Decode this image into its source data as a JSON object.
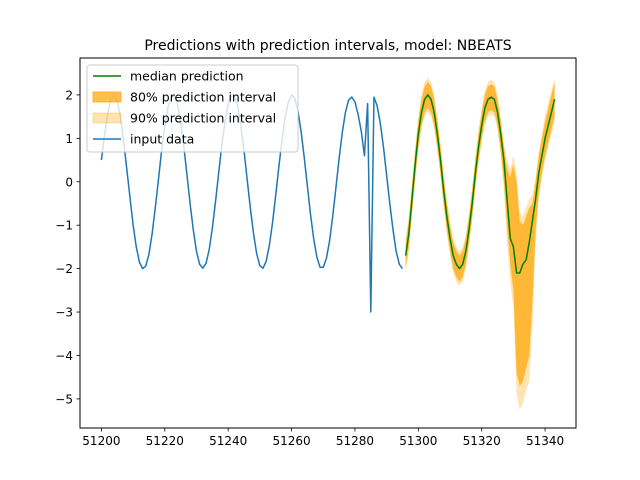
{
  "chart_data": {
    "type": "line",
    "title": "Predictions with prediction intervals, model: NBEATS",
    "xlabel": "",
    "ylabel": "",
    "xlim": [
      51193.25,
      51349.75
    ],
    "ylim": [
      -5.67,
      2.85
    ],
    "x_ticks": [
      51200,
      51220,
      51240,
      51260,
      51280,
      51300,
      51320,
      51340
    ],
    "y_ticks": [
      2,
      1,
      0,
      -1,
      -2,
      -3,
      -4,
      -5
    ],
    "x_tick_labels": [
      "51200",
      "51220",
      "51240",
      "51260",
      "51280",
      "51300",
      "51320",
      "51340"
    ],
    "y_tick_labels": [
      "2",
      "1",
      "0",
      "−1",
      "−2",
      "−3",
      "−4",
      "−5"
    ],
    "grid": false,
    "legend_position": "top-left",
    "legend": [
      {
        "label": "median prediction",
        "kind": "line",
        "color": "#008000"
      },
      {
        "label": "80% prediction interval",
        "kind": "patch",
        "color": "#FFA500",
        "opacity": 0.7
      },
      {
        "label": "90% prediction interval",
        "kind": "patch",
        "color": "#FFA500",
        "opacity": 0.3
      },
      {
        "label": "input data",
        "kind": "line",
        "color": "#1f77b4"
      }
    ],
    "series": [
      {
        "name": "input data",
        "color": "#1f77b4",
        "x": [
          51200,
          51201,
          51202,
          51203,
          51204,
          51205,
          51206,
          51207,
          51208,
          51209,
          51210,
          51211,
          51212,
          51213,
          51214,
          51215,
          51216,
          51217,
          51218,
          51219,
          51220,
          51221,
          51222,
          51223,
          51224,
          51225,
          51226,
          51227,
          51228,
          51229,
          51230,
          51231,
          51232,
          51233,
          51234,
          51235,
          51236,
          51237,
          51238,
          51239,
          51240,
          51241,
          51242,
          51243,
          51244,
          51245,
          51246,
          51247,
          51248,
          51249,
          51250,
          51251,
          51252,
          51253,
          51254,
          51255,
          51256,
          51257,
          51258,
          51259,
          51260,
          51261,
          51262,
          51263,
          51264,
          51265,
          51266,
          51267,
          51268,
          51269,
          51270,
          51271,
          51272,
          51273,
          51274,
          51275,
          51276,
          51277,
          51278,
          51279,
          51280,
          51281,
          51282,
          51283,
          51284,
          51285,
          51286,
          51287,
          51288,
          51289,
          51290,
          51291,
          51292,
          51293,
          51294,
          51295
        ],
        "y": [
          0.5,
          1.08,
          1.58,
          1.9,
          2.0,
          1.86,
          1.48,
          0.95,
          0.3,
          -0.35,
          -0.99,
          -1.5,
          -1.85,
          -2.0,
          -1.94,
          -1.67,
          -1.2,
          -0.6,
          0.05,
          0.72,
          1.28,
          1.71,
          1.95,
          1.97,
          1.78,
          1.38,
          0.81,
          0.16,
          -0.51,
          -1.11,
          -1.6,
          -1.9,
          -1.99,
          -1.88,
          -1.57,
          -1.07,
          -0.46,
          0.2,
          0.85,
          1.38,
          1.78,
          1.98,
          1.97,
          1.75,
          1.3,
          0.72,
          0.05,
          -0.61,
          -1.19,
          -1.66,
          -1.93,
          -1.99,
          -1.83,
          -1.46,
          -0.94,
          -0.31,
          0.35,
          0.97,
          1.49,
          1.84,
          2.0,
          1.93,
          1.64,
          1.16,
          0.56,
          -0.1,
          -0.76,
          -1.32,
          -1.74,
          -1.97,
          -1.97,
          -1.76,
          -1.36,
          -0.79,
          -0.14,
          0.53,
          1.13,
          1.6,
          1.88,
          1.95,
          1.84,
          1.55,
          1.16,
          0.6,
          1.8,
          -3.0,
          1.95,
          1.75,
          1.35,
          0.8,
          0.15,
          -0.5,
          -1.1,
          -1.6,
          -1.9,
          -2.0
        ]
      },
      {
        "name": "median prediction",
        "color": "#008000",
        "x": [
          51296,
          51297,
          51298,
          51299,
          51300,
          51301,
          51302,
          51303,
          51304,
          51305,
          51306,
          51307,
          51308,
          51309,
          51310,
          51311,
          51312,
          51313,
          51314,
          51315,
          51316,
          51317,
          51318,
          51319,
          51320,
          51321,
          51322,
          51323,
          51324,
          51325,
          51326,
          51327,
          51328,
          51329,
          51330,
          51331,
          51332,
          51333,
          51334,
          51335,
          51336,
          51337,
          51338,
          51339,
          51340,
          51341,
          51342,
          51343
        ],
        "y": [
          -1.7,
          -1.2,
          -0.4,
          0.4,
          1.1,
          1.6,
          1.9,
          2.0,
          1.9,
          1.6,
          1.1,
          0.5,
          -0.2,
          -0.8,
          -1.3,
          -1.7,
          -1.9,
          -2.0,
          -1.9,
          -1.6,
          -1.1,
          -0.5,
          0.2,
          0.8,
          1.3,
          1.7,
          1.9,
          1.95,
          1.9,
          1.6,
          1.1,
          0.5,
          -0.4,
          -1.3,
          -1.5,
          -2.1,
          -2.1,
          -1.9,
          -1.8,
          -1.4,
          -0.9,
          -0.4,
          0.2,
          0.6,
          1.0,
          1.3,
          1.6,
          1.9
        ]
      }
    ],
    "intervals": [
      {
        "name": "90% prediction interval",
        "color": "#FFA500",
        "opacity": 0.3,
        "x": [
          51296,
          51297,
          51298,
          51299,
          51300,
          51301,
          51302,
          51303,
          51304,
          51305,
          51306,
          51307,
          51308,
          51309,
          51310,
          51311,
          51312,
          51313,
          51314,
          51315,
          51316,
          51317,
          51318,
          51319,
          51320,
          51321,
          51322,
          51323,
          51324,
          51325,
          51326,
          51327,
          51328,
          51329,
          51330,
          51331,
          51332,
          51333,
          51334,
          51335,
          51336,
          51337,
          51338,
          51339,
          51340,
          51341,
          51342,
          51343
        ],
        "lower": [
          -2.1,
          -1.6,
          -0.8,
          0.0,
          0.7,
          1.2,
          1.5,
          1.6,
          1.5,
          1.2,
          0.7,
          0.1,
          -0.6,
          -1.2,
          -1.7,
          -2.1,
          -2.3,
          -2.4,
          -2.3,
          -2.0,
          -1.5,
          -0.9,
          -0.2,
          0.4,
          0.9,
          1.3,
          1.5,
          1.55,
          1.5,
          1.2,
          0.6,
          -0.2,
          -1.4,
          -2.3,
          -2.9,
          -4.9,
          -5.25,
          -5.1,
          -4.8,
          -4.6,
          -3.3,
          -1.4,
          -0.4,
          0.1,
          0.5,
          0.8,
          1.1,
          1.4
        ],
        "upper": [
          -1.3,
          -0.8,
          0.0,
          0.8,
          1.5,
          2.0,
          2.3,
          2.4,
          2.3,
          2.0,
          1.5,
          0.9,
          0.2,
          -0.4,
          -0.9,
          -1.3,
          -1.5,
          -1.6,
          -1.5,
          -1.2,
          -0.7,
          -0.1,
          0.6,
          1.2,
          1.7,
          2.1,
          2.3,
          2.35,
          2.3,
          2.0,
          1.5,
          0.9,
          0.5,
          0.3,
          0.6,
          0.2,
          -0.7,
          -0.8,
          -0.6,
          -0.4,
          -0.3,
          0.1,
          0.7,
          1.1,
          1.5,
          1.8,
          2.1,
          2.35
        ]
      },
      {
        "name": "80% prediction interval",
        "color": "#FFA500",
        "opacity": 0.7,
        "x": [
          51296,
          51297,
          51298,
          51299,
          51300,
          51301,
          51302,
          51303,
          51304,
          51305,
          51306,
          51307,
          51308,
          51309,
          51310,
          51311,
          51312,
          51313,
          51314,
          51315,
          51316,
          51317,
          51318,
          51319,
          51320,
          51321,
          51322,
          51323,
          51324,
          51325,
          51326,
          51327,
          51328,
          51329,
          51330,
          51331,
          51332,
          51333,
          51334,
          51335,
          51336,
          51337,
          51338,
          51339,
          51340,
          51341,
          51342,
          51343
        ],
        "lower": [
          -2.0,
          -1.5,
          -0.7,
          0.1,
          0.8,
          1.3,
          1.6,
          1.7,
          1.6,
          1.3,
          0.8,
          0.2,
          -0.5,
          -1.1,
          -1.6,
          -2.0,
          -2.2,
          -2.3,
          -2.2,
          -1.9,
          -1.4,
          -0.8,
          -0.1,
          0.5,
          1.0,
          1.4,
          1.6,
          1.65,
          1.6,
          1.3,
          0.7,
          0.0,
          -1.0,
          -1.9,
          -2.5,
          -4.4,
          -4.7,
          -4.6,
          -4.3,
          -4.0,
          -2.8,
          -1.1,
          -0.3,
          0.2,
          0.6,
          0.9,
          1.2,
          1.5
        ],
        "upper": [
          -1.4,
          -0.9,
          -0.1,
          0.7,
          1.4,
          1.9,
          2.2,
          2.3,
          2.2,
          1.9,
          1.4,
          0.8,
          0.1,
          -0.5,
          -1.0,
          -1.4,
          -1.6,
          -1.7,
          -1.6,
          -1.3,
          -0.8,
          -0.2,
          0.5,
          1.1,
          1.6,
          2.0,
          2.2,
          2.25,
          2.2,
          1.9,
          1.4,
          0.8,
          0.3,
          0.1,
          0.4,
          0.0,
          -0.9,
          -1.0,
          -0.8,
          -0.6,
          -0.5,
          0.0,
          0.6,
          1.0,
          1.4,
          1.7,
          2.0,
          2.3
        ]
      }
    ]
  }
}
